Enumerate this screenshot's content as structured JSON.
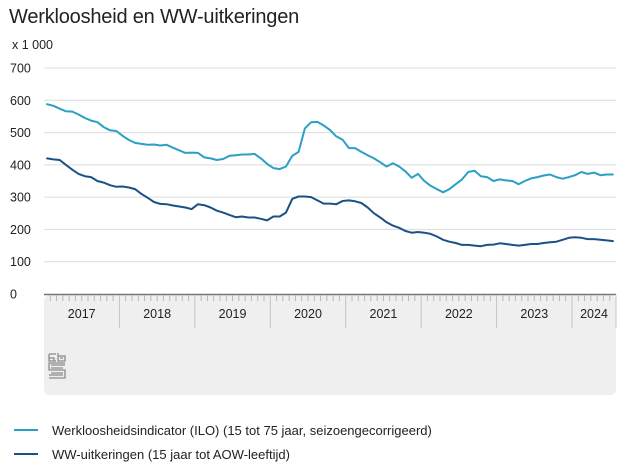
{
  "title": "Werkloosheid en WW-uitkeringen",
  "unit_label": "x 1 000",
  "colors": {
    "ilo": "#2b9fc4",
    "ww": "#1a5288",
    "grid": "#dcdcdc",
    "panel": "#efefef",
    "axis": "#777777"
  },
  "logo": "cbs",
  "chart_data": {
    "type": "line",
    "title": "Werkloosheid en WW-uitkeringen",
    "ylabel": "x 1 000",
    "xlabel": "",
    "ylim": [
      0,
      700
    ],
    "yticks": [
      "0",
      "100",
      "200",
      "300",
      "400",
      "500",
      "600",
      "700"
    ],
    "ytick_values": [
      0,
      100,
      200,
      300,
      400,
      500,
      600,
      700
    ],
    "x_start": "2017-01",
    "x_end": "2024-07",
    "year_labels": [
      "2017",
      "2018",
      "2019",
      "2020",
      "2021",
      "2022",
      "2023",
      "2024"
    ],
    "months_per_year": [
      12,
      12,
      12,
      12,
      12,
      12,
      12,
      7
    ],
    "grid": true,
    "legend_position": "bottom",
    "series": [
      {
        "name": "Werkloosheidsindicator (ILO) (15 tot 75 jaar, seizoengecorrigeerd)",
        "color": "#2b9fc4",
        "values": [
          588,
          583,
          574,
          566,
          565,
          556,
          545,
          537,
          532,
          517,
          507,
          505,
          490,
          477,
          468,
          465,
          462,
          463,
          460,
          462,
          453,
          445,
          437,
          438,
          437,
          423,
          420,
          415,
          418,
          428,
          430,
          432,
          432,
          434,
          420,
          403,
          390,
          387,
          395,
          428,
          440,
          513,
          532,
          533,
          522,
          508,
          488,
          478,
          452,
          452,
          440,
          430,
          420,
          408,
          395,
          405,
          395,
          380,
          360,
          372,
          350,
          335,
          325,
          315,
          325,
          340,
          355,
          378,
          382,
          365,
          362,
          350,
          355,
          352,
          350,
          340,
          350,
          358,
          362,
          367,
          370,
          362,
          357,
          362,
          368,
          378,
          372,
          376,
          368,
          370,
          370
        ]
      },
      {
        "name": "WW-uitkeringen (15 jaar tot AOW-leeftijd)",
        "color": "#1a5288",
        "values": [
          420,
          417,
          415,
          400,
          385,
          372,
          365,
          362,
          350,
          345,
          337,
          332,
          333,
          330,
          325,
          310,
          298,
          285,
          279,
          278,
          274,
          271,
          268,
          263,
          278,
          275,
          268,
          258,
          252,
          245,
          238,
          240,
          237,
          237,
          233,
          228,
          240,
          240,
          252,
          295,
          302,
          302,
          300,
          290,
          280,
          280,
          278,
          288,
          290,
          287,
          282,
          268,
          250,
          237,
          222,
          212,
          205,
          195,
          190,
          192,
          190,
          186,
          178,
          168,
          162,
          158,
          152,
          152,
          150,
          148,
          152,
          153,
          157,
          155,
          152,
          150,
          152,
          155,
          155,
          158,
          160,
          162,
          168,
          174,
          176,
          174,
          170,
          170,
          168,
          166,
          164
        ]
      }
    ]
  }
}
